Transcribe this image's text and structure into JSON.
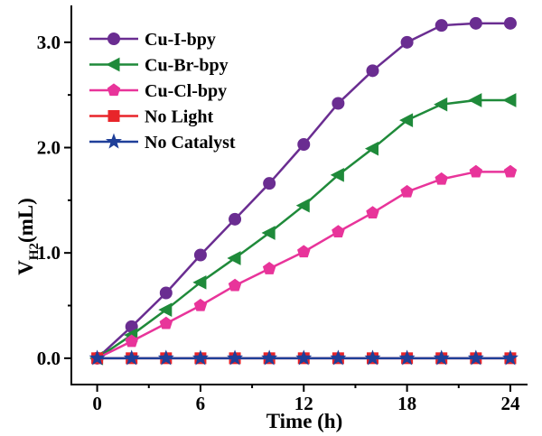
{
  "chart_data": {
    "type": "line",
    "title": "",
    "xlabel": "Time (h)",
    "ylabel": {
      "main": "V",
      "sub": "H2",
      "unit": "(mL)"
    },
    "xlim": [
      -1.5,
      25
    ],
    "ylim": [
      -0.25,
      3.35
    ],
    "xticks": [
      0,
      6,
      12,
      18,
      24
    ],
    "yticks": [
      0.0,
      1.0,
      2.0,
      3.0
    ],
    "xtick_labels": [
      "0",
      "6",
      "12",
      "18",
      "24"
    ],
    "ytick_labels": [
      "0.0",
      "1.0",
      "2.0",
      "3.0"
    ],
    "grid": false,
    "legend_position": "top-left",
    "x": [
      0,
      2,
      4,
      6,
      8,
      10,
      12,
      14,
      16,
      18,
      20,
      22,
      24
    ],
    "series": [
      {
        "name": "Cu-I-bpy",
        "color": "#6a2d91",
        "marker": "circle",
        "values": [
          0,
          0.3,
          0.62,
          0.98,
          1.32,
          1.66,
          2.03,
          2.42,
          2.73,
          3.0,
          3.16,
          3.18,
          3.18
        ]
      },
      {
        "name": "Cu-Br-bpy",
        "color": "#1f8a3a",
        "marker": "triangle-left",
        "values": [
          0,
          0.22,
          0.46,
          0.72,
          0.95,
          1.19,
          1.45,
          1.74,
          1.99,
          2.26,
          2.41,
          2.45,
          2.45
        ]
      },
      {
        "name": "Cu-Cl-bpy",
        "color": "#e8349a",
        "marker": "pentagon",
        "values": [
          0,
          0.16,
          0.33,
          0.5,
          0.69,
          0.85,
          1.01,
          1.2,
          1.38,
          1.58,
          1.7,
          1.77,
          1.77
        ]
      },
      {
        "name": "No Light",
        "color": "#e8252a",
        "marker": "square",
        "values": [
          0,
          0,
          0,
          0,
          0,
          0,
          0,
          0,
          0,
          0,
          0,
          0,
          0
        ]
      },
      {
        "name": "No Catalyst",
        "color": "#1f3f99",
        "marker": "star",
        "values": [
          0,
          0,
          0,
          0,
          0,
          0,
          0,
          0,
          0,
          0,
          0,
          0,
          0
        ]
      }
    ]
  }
}
